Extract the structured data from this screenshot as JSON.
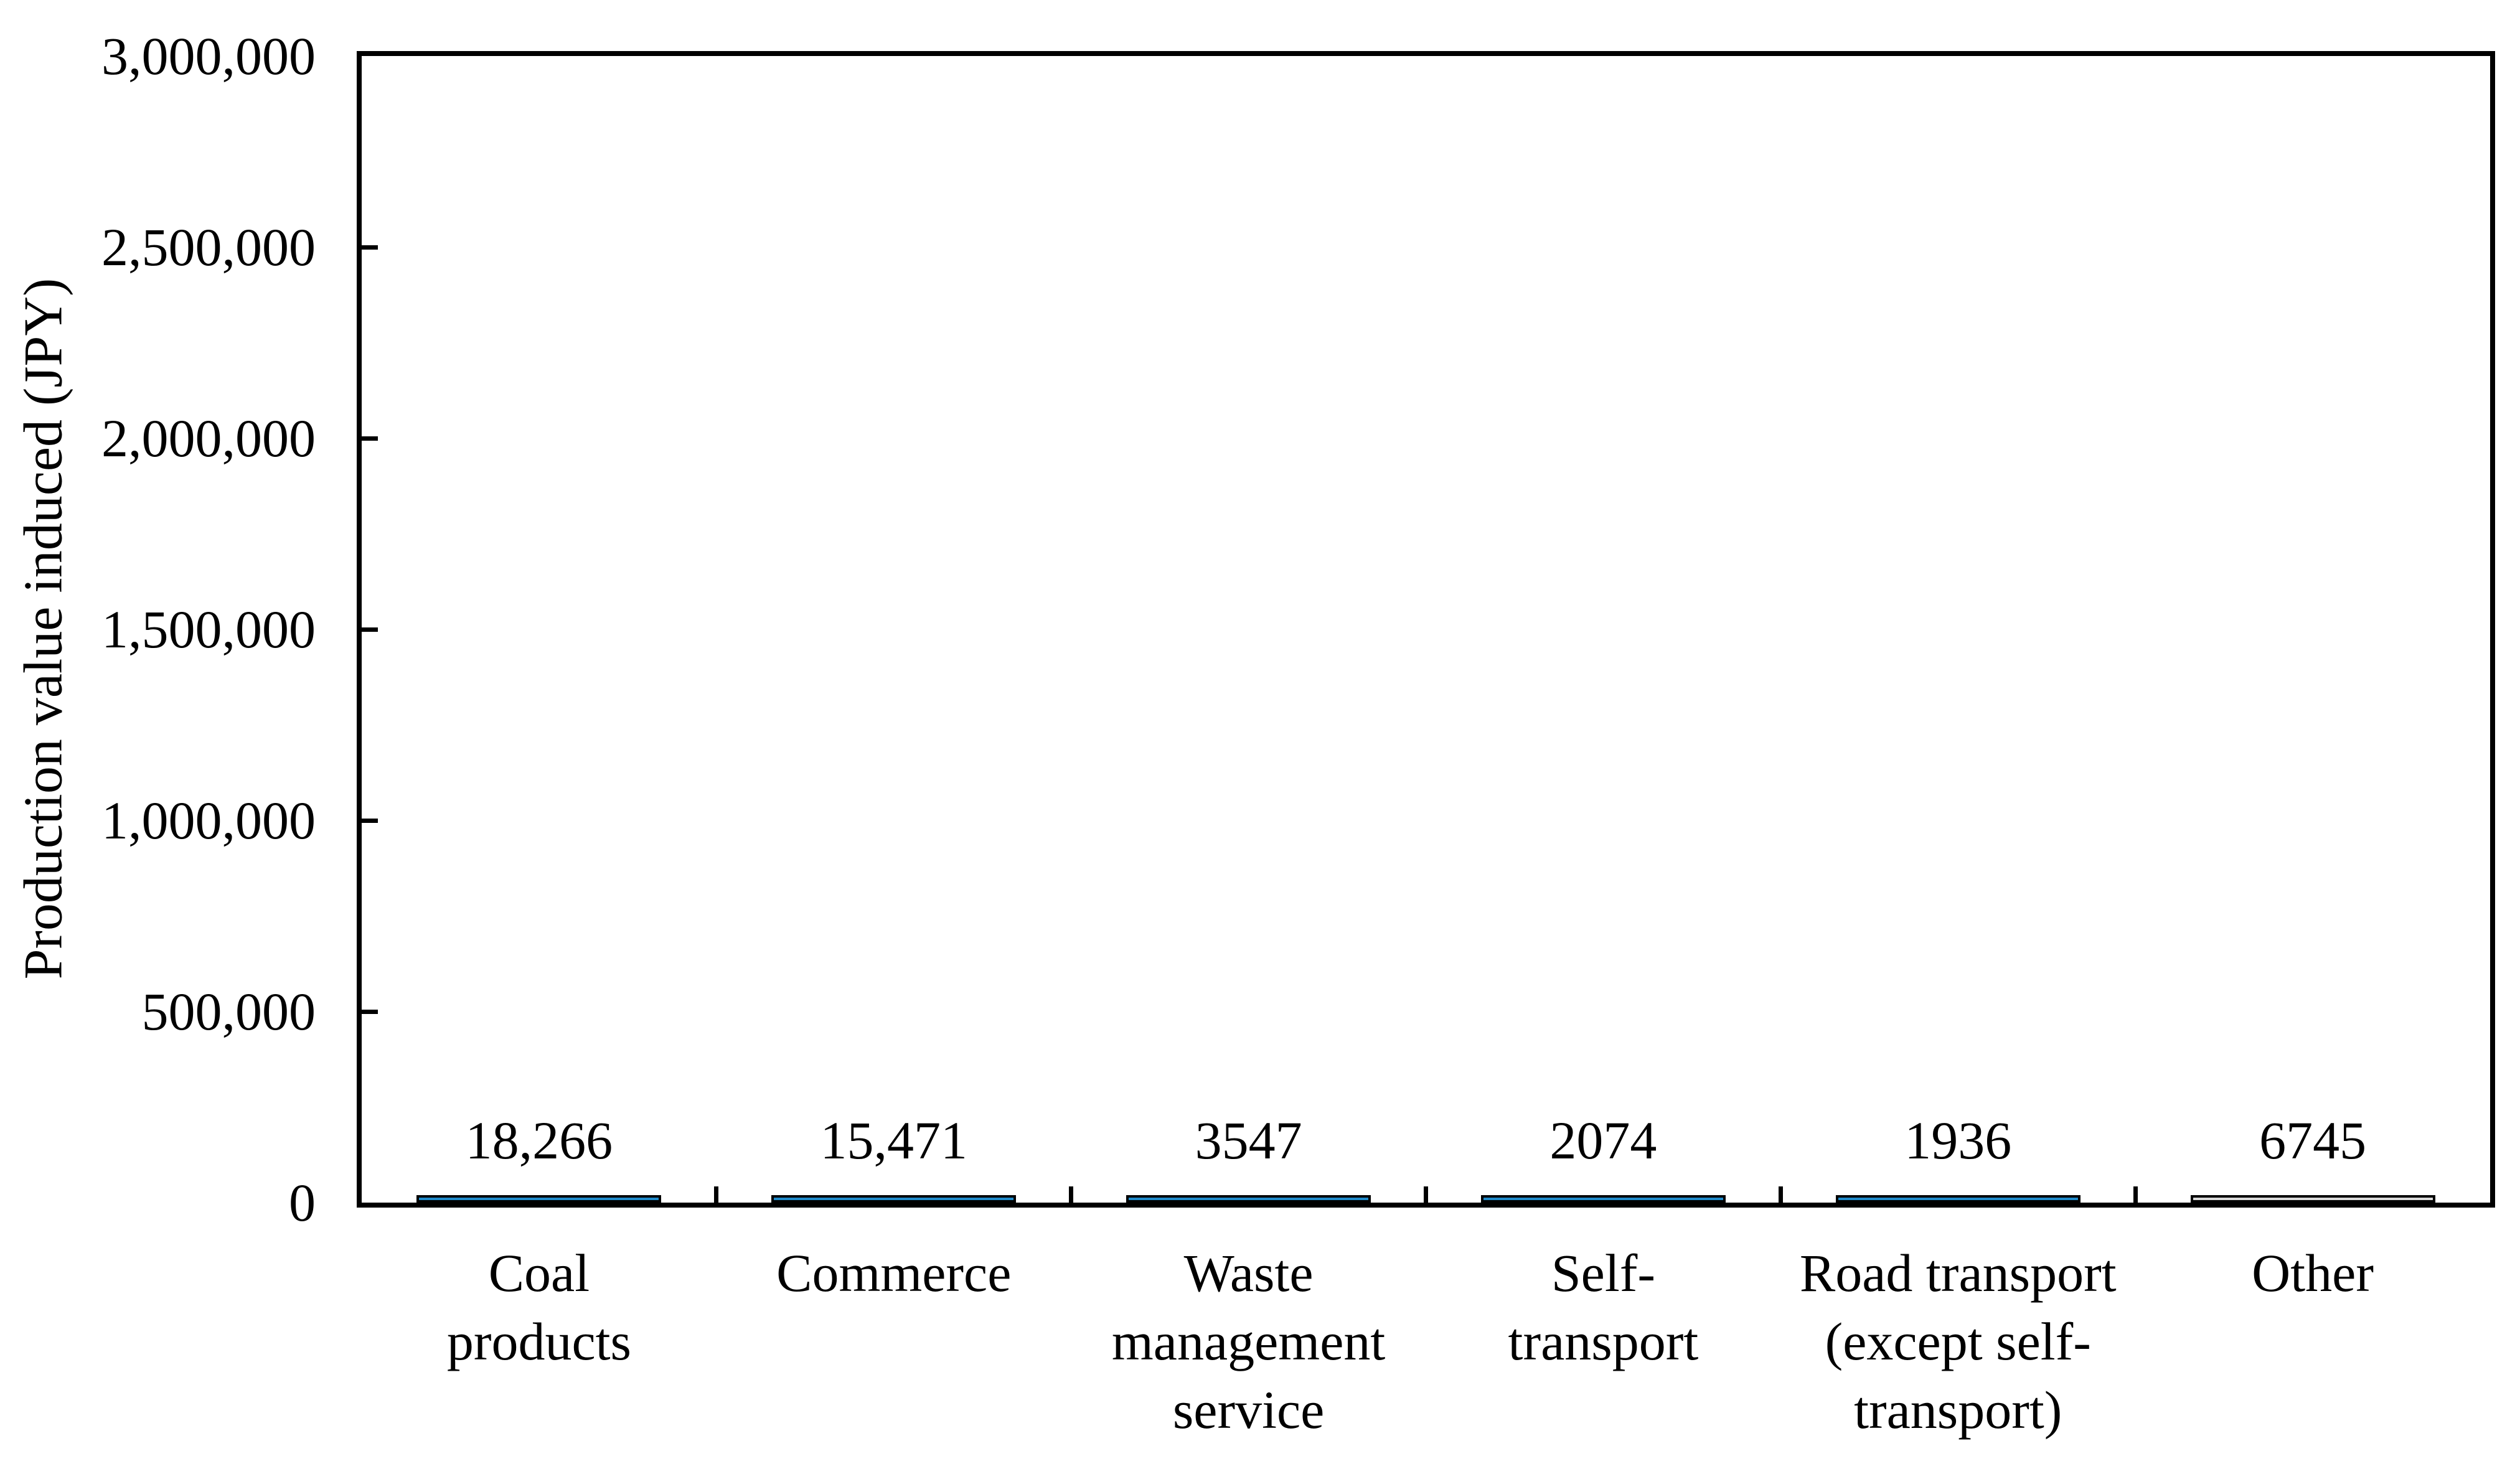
{
  "chart_data": {
    "type": "bar",
    "title": "",
    "ylabel": "Production value induced (JPY)",
    "xlabel": "",
    "ylim": [
      0,
      3000000
    ],
    "grid": "off",
    "legend": "none",
    "categories": [
      "Coal products",
      "Commerce",
      "Waste management service",
      "Self-transport",
      "Road transport (except self-transport)",
      "Other"
    ],
    "category_lines": [
      [
        "Coal",
        "products"
      ],
      [
        "Commerce"
      ],
      [
        "Waste",
        "management",
        "service"
      ],
      [
        "Self-",
        "transport"
      ],
      [
        "Road transport",
        "(except self-",
        "transport)"
      ],
      [
        "Other"
      ]
    ],
    "values": [
      18266,
      15471,
      3547,
      2074,
      1936,
      6745
    ],
    "value_labels": [
      "18,266",
      "15,471",
      "3547",
      "2074",
      "1936",
      "6745"
    ],
    "yticks": [
      {
        "v": 0,
        "label": "0"
      },
      {
        "v": 500000,
        "label": "500,000"
      },
      {
        "v": 1000000,
        "label": "1,000,000"
      },
      {
        "v": 1500000,
        "label": "1,500,000"
      },
      {
        "v": 2000000,
        "label": "2,000,000"
      },
      {
        "v": 2500000,
        "label": "2,500,000"
      },
      {
        "v": 3000000,
        "label": "3,000,000"
      }
    ],
    "bar_fill_colors": [
      "#208BCB",
      "#208BCB",
      "#208BCB",
      "#208BCB",
      "#208BCB",
      "#D9D9D9"
    ],
    "bar_border_color": "#000000",
    "axis_color": "#000000",
    "background": "#FFFFFF"
  }
}
